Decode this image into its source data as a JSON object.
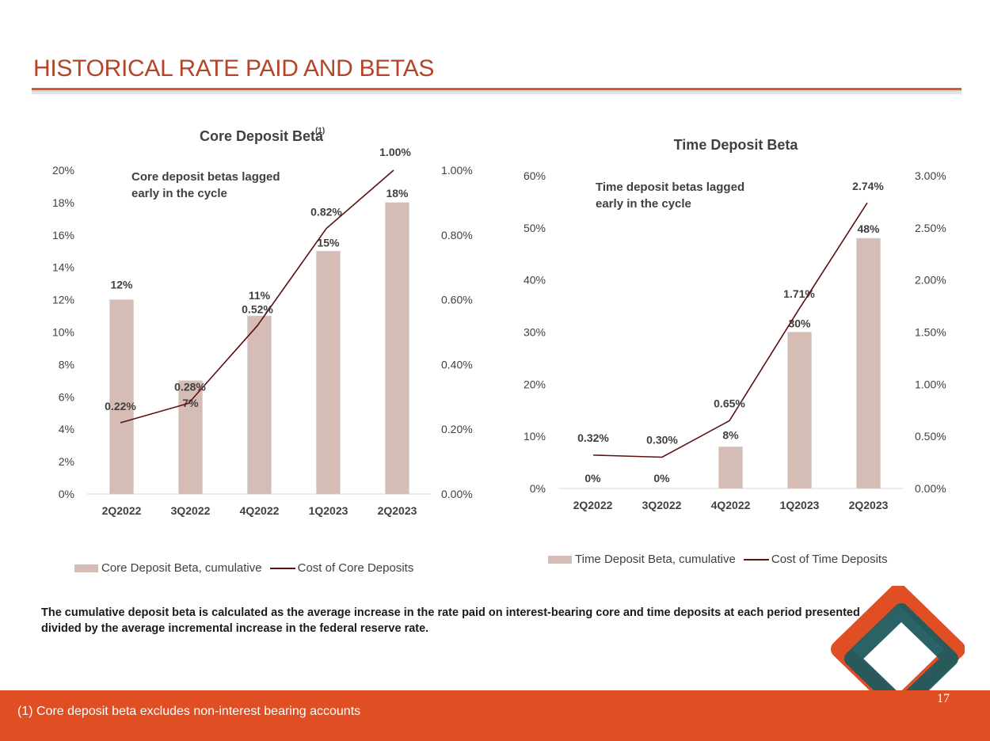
{
  "slide": {
    "title": "HISTORICAL RATE PAID AND BETAS",
    "footnote": "The cumulative deposit beta is calculated as the average increase in the rate paid on interest-bearing core and time deposits at each period presented divided by the average incremental increase in the federal reserve rate.",
    "footer_note": "(1) Core deposit beta excludes non-interest bearing accounts",
    "page_number": "17",
    "colors": {
      "title": "#B5452A",
      "footer": "#E04E24",
      "bar": "#D5BDB6",
      "line": "#5C1010",
      "logo_orange": "#E04E24",
      "logo_teal": "#1F5A5E"
    }
  },
  "chart_data": [
    {
      "type": "bar",
      "title": "Core Deposit Beta",
      "title_superscript": "(1)",
      "annotation": [
        "Core deposit betas lagged",
        "early in the cycle"
      ],
      "categories": [
        "2Q2022",
        "3Q2022",
        "4Q2022",
        "1Q2023",
        "2Q2023"
      ],
      "ylim": [
        0,
        20
      ],
      "y_ticks": [
        "0%",
        "2%",
        "4%",
        "6%",
        "8%",
        "10%",
        "12%",
        "14%",
        "16%",
        "18%",
        "20%"
      ],
      "y2lim": [
        0,
        1.0
      ],
      "y2_ticks": [
        "0.00%",
        "0.20%",
        "0.40%",
        "0.60%",
        "0.80%",
        "1.00%"
      ],
      "legend_position": "bottom",
      "series": [
        {
          "name": "Core Deposit Beta, cumulative",
          "type": "bar",
          "axis": "left",
          "values": [
            12,
            7,
            11,
            15,
            18
          ],
          "labels": [
            "12%",
            "7%",
            "11%",
            "15%",
            "18%"
          ]
        },
        {
          "name": "Cost of Core Deposits",
          "type": "line",
          "axis": "right",
          "values": [
            0.22,
            0.28,
            0.52,
            0.82,
            1.0
          ],
          "labels": [
            "0.22%",
            "0.28%",
            "0.52%",
            "0.82%",
            "1.00%"
          ]
        }
      ]
    },
    {
      "type": "bar",
      "title": "Time Deposit Beta",
      "title_superscript": "",
      "annotation": [
        "Time deposit betas lagged",
        "early in the cycle"
      ],
      "categories": [
        "2Q2022",
        "3Q2022",
        "4Q2022",
        "1Q2023",
        "2Q2023"
      ],
      "ylim": [
        0,
        60
      ],
      "y_ticks": [
        "0%",
        "10%",
        "20%",
        "30%",
        "40%",
        "50%",
        "60%"
      ],
      "y2lim": [
        0,
        3.0
      ],
      "y2_ticks": [
        "0.00%",
        "0.50%",
        "1.00%",
        "1.50%",
        "2.00%",
        "2.50%",
        "3.00%"
      ],
      "legend_position": "bottom",
      "series": [
        {
          "name": "Time Deposit Beta, cumulative",
          "type": "bar",
          "axis": "left",
          "values": [
            0,
            0,
            8,
            30,
            48
          ],
          "labels": [
            "0%",
            "0%",
            "8%",
            "30%",
            "48%"
          ]
        },
        {
          "name": "Cost of Time Deposits",
          "type": "line",
          "axis": "right",
          "values": [
            0.32,
            0.3,
            0.65,
            1.71,
            2.74
          ],
          "labels": [
            "0.32%",
            "0.30%",
            "0.65%",
            "1.71%",
            "2.74%"
          ]
        }
      ]
    }
  ]
}
